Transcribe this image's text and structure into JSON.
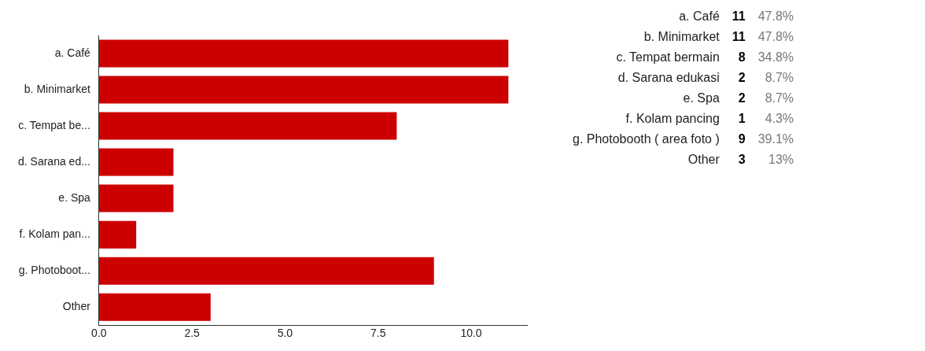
{
  "chart_data": [
    {
      "type": "bar",
      "orientation": "horizontal",
      "categories": [
        "a. Café",
        "b. Minimarket",
        "c. Tempat be...",
        "d. Sarana ed...",
        "e. Spa",
        "f. Kolam pan...",
        "g. Photoboot...",
        "Other"
      ],
      "values": [
        11,
        11,
        8,
        2,
        2,
        1,
        9,
        3
      ],
      "color": "#cc0000",
      "xlim": [
        0,
        11.5
      ],
      "xticks": [
        {
          "value": 0,
          "label": "0.0"
        },
        {
          "value": 2.5,
          "label": "2.5"
        },
        {
          "value": 5,
          "label": "5.0"
        },
        {
          "value": 7.5,
          "label": "7.5"
        },
        {
          "value": 10,
          "label": "10.0"
        }
      ],
      "grid": false
    },
    {
      "type": "other",
      "categories": [
        "a. Café",
        "b. Minimarket",
        "c. Tempat bermain",
        "d. Sarana edukasi",
        "e. Spa",
        "f. Kolam pancing",
        "g. Photobooth ( area foto )",
        "Other"
      ],
      "data_labels": true,
      "series": [
        {
          "color": "#000000",
          "values": [
            11,
            11,
            8,
            2,
            2,
            1,
            9,
            3
          ]
        },
        {
          "color": "#777777",
          "values": [
            47.8,
            47.8,
            34.8,
            8.7,
            8.7,
            4.3,
            39.1,
            13
          ],
          "value_labels": [
            "47.8%",
            "47.8%",
            "34.8%",
            "8.7%",
            "8.7%",
            "4.3%",
            "39.1%",
            "13%"
          ]
        }
      ]
    }
  ]
}
